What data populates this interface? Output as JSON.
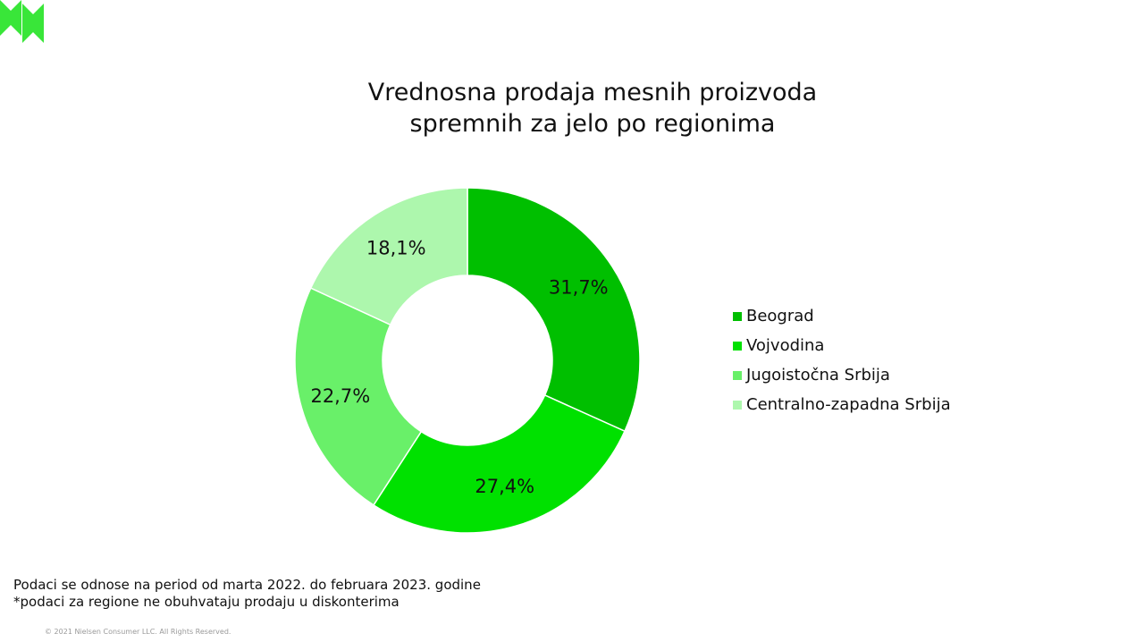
{
  "colors": {
    "logo": "#39e639",
    "series": [
      "#00bf00",
      "#00e100",
      "#69f069",
      "#adf7ad"
    ]
  },
  "logo": {
    "icon": "nielsen-logo-mark"
  },
  "chart_data": {
    "type": "pie",
    "style": "donut",
    "title": "Vrednosna prodaja mesnih proizvoda spremnih za jelo po regionima",
    "title_lines": [
      "Vrednosna prodaja mesnih proizvoda",
      "spremnih za jelo po regionima"
    ],
    "categories": [
      "Beograd",
      "Vojvodina",
      "Jugoistočna Srbija",
      "Centralno-zapadna Srbija"
    ],
    "values": [
      31.7,
      27.4,
      22.7,
      18.1
    ],
    "data_labels": [
      "31,7%",
      "27,4%",
      "22,7%",
      "18,1%"
    ],
    "legend_position": "right"
  },
  "notes": [
    "Podaci se odnose na period od marta 2022. do februara 2023. godine",
    "*podaci za regione ne obuhvataju prodaju u diskonterima"
  ],
  "copyright": "© 2021 Nielsen Consumer LLC. All Rights Reserved."
}
